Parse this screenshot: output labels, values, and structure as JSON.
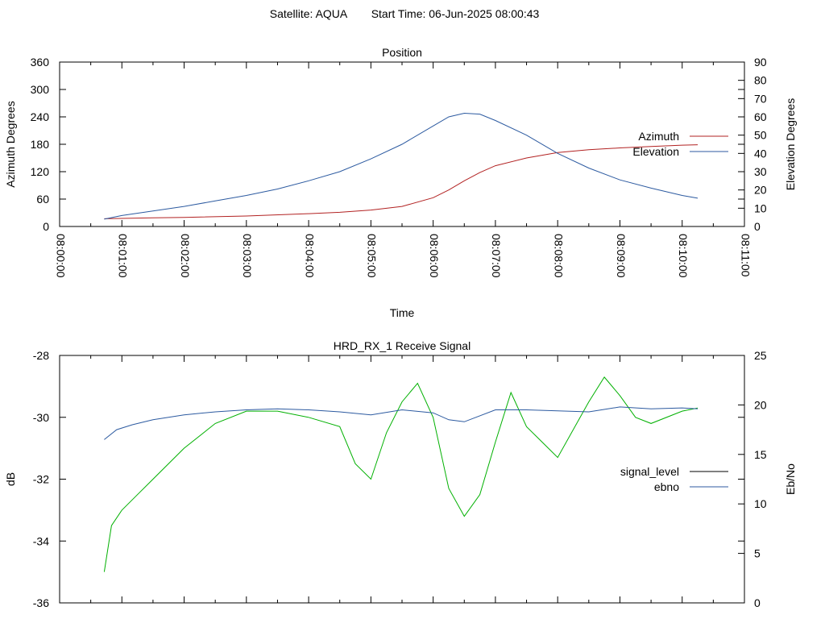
{
  "header": {
    "satellite_label": "Satellite: AQUA",
    "start_time_label": "Start Time: 06-Jun-2025 08:00:43"
  },
  "chart_data": [
    {
      "type": "line",
      "title": "Position",
      "xlabel": "Time",
      "ylabel": "Azimuth Degrees",
      "y2label": "Elevation Degrees",
      "xlim": [
        "08:00:00",
        "08:11:00"
      ],
      "ylim": [
        0,
        360
      ],
      "y2lim": [
        0,
        90
      ],
      "x_ticks": [
        "08:00:00",
        "08:01:00",
        "08:02:00",
        "08:03:00",
        "08:04:00",
        "08:05:00",
        "08:06:00",
        "08:07:00",
        "08:08:00",
        "08:09:00",
        "08:10:00",
        "08:11:00"
      ],
      "y_ticks": [
        "0",
        "60",
        "120",
        "180",
        "240",
        "300",
        "360"
      ],
      "y2_ticks": [
        "0",
        "10",
        "20",
        "30",
        "40",
        "50",
        "60",
        "70",
        "80",
        "90"
      ],
      "legend_position": "right",
      "grid": false,
      "series": [
        {
          "name": "Azimuth",
          "axis": "y1",
          "color": "#b22222",
          "x": [
            "08:00:43",
            "08:01:30",
            "08:02:00",
            "08:03:00",
            "08:04:00",
            "08:04:30",
            "08:05:00",
            "08:05:30",
            "08:06:00",
            "08:06:15",
            "08:06:30",
            "08:06:45",
            "08:07:00",
            "08:07:30",
            "08:08:00",
            "08:08:30",
            "08:09:00",
            "08:09:30",
            "08:10:00",
            "08:10:15"
          ],
          "values": [
            17,
            19,
            20,
            23,
            28,
            31,
            36,
            44,
            63,
            80,
            100,
            118,
            133,
            150,
            162,
            168,
            172,
            175,
            178,
            179
          ]
        },
        {
          "name": "Elevation",
          "axis": "y2",
          "color": "#2c5aa0",
          "x": [
            "08:00:43",
            "08:01:00",
            "08:01:30",
            "08:02:00",
            "08:02:30",
            "08:03:00",
            "08:03:30",
            "08:04:00",
            "08:04:30",
            "08:05:00",
            "08:05:30",
            "08:06:00",
            "08:06:15",
            "08:06:30",
            "08:06:45",
            "08:07:00",
            "08:07:30",
            "08:08:00",
            "08:08:30",
            "08:09:00",
            "08:09:30",
            "08:10:00",
            "08:10:15"
          ],
          "values": [
            4,
            6,
            8.5,
            11,
            14,
            17,
            20.5,
            25,
            30,
            37,
            45,
            55,
            60,
            62,
            61.5,
            58,
            50,
            40,
            32,
            25.5,
            21,
            17,
            15.5
          ]
        }
      ]
    },
    {
      "type": "line",
      "title": "HRD_RX_1 Receive Signal",
      "xlabel": "",
      "ylabel": "dB",
      "y2label": "Eb/No",
      "xlim": [
        "08:00:00",
        "08:11:00"
      ],
      "ylim": [
        -36,
        -28
      ],
      "y2lim": [
        0,
        25
      ],
      "y_ticks": [
        "-36",
        "-34",
        "-32",
        "-30",
        "-28"
      ],
      "y2_ticks": [
        "0",
        "5",
        "10",
        "15",
        "20",
        "25"
      ],
      "legend_position": "right",
      "grid": false,
      "series": [
        {
          "name": "signal_level",
          "axis": "y1",
          "color": "#00b000",
          "x": [
            "08:00:43",
            "08:00:50",
            "08:01:00",
            "08:01:15",
            "08:01:30",
            "08:02:00",
            "08:02:30",
            "08:03:00",
            "08:03:30",
            "08:04:00",
            "08:04:30",
            "08:04:45",
            "08:05:00",
            "08:05:15",
            "08:05:30",
            "08:05:45",
            "08:06:00",
            "08:06:15",
            "08:06:30",
            "08:06:45",
            "08:07:00",
            "08:07:15",
            "08:07:30",
            "08:07:45",
            "08:08:00",
            "08:08:30",
            "08:08:45",
            "08:09:00",
            "08:09:15",
            "08:09:30",
            "08:10:00",
            "08:10:15"
          ],
          "values": [
            -35,
            -33.5,
            -33,
            -32.5,
            -32,
            -31,
            -30.2,
            -29.8,
            -29.8,
            -30,
            -30.3,
            -31.5,
            -32,
            -30.5,
            -29.5,
            -28.9,
            -30,
            -32.3,
            -33.2,
            -32.5,
            -30.8,
            -29.2,
            -30.3,
            -30.8,
            -31.3,
            -29.5,
            -28.7,
            -29.3,
            -30,
            -30.2,
            -29.8,
            -29.7
          ]
        },
        {
          "name": "ebno",
          "axis": "y2",
          "color": "#2c5aa0",
          "x": [
            "08:00:43",
            "08:00:55",
            "08:01:10",
            "08:01:30",
            "08:02:00",
            "08:02:30",
            "08:03:00",
            "08:03:30",
            "08:04:00",
            "08:04:30",
            "08:05:00",
            "08:05:30",
            "08:06:00",
            "08:06:15",
            "08:06:30",
            "08:07:00",
            "08:07:30",
            "08:08:00",
            "08:08:30",
            "08:09:00",
            "08:09:30",
            "08:10:00",
            "08:10:15"
          ],
          "values": [
            16.5,
            17.5,
            18,
            18.5,
            19,
            19.3,
            19.5,
            19.6,
            19.5,
            19.3,
            19,
            19.5,
            19.2,
            18.5,
            18.3,
            19.5,
            19.5,
            19.4,
            19.3,
            19.8,
            19.6,
            19.7,
            19.6
          ]
        }
      ]
    }
  ]
}
